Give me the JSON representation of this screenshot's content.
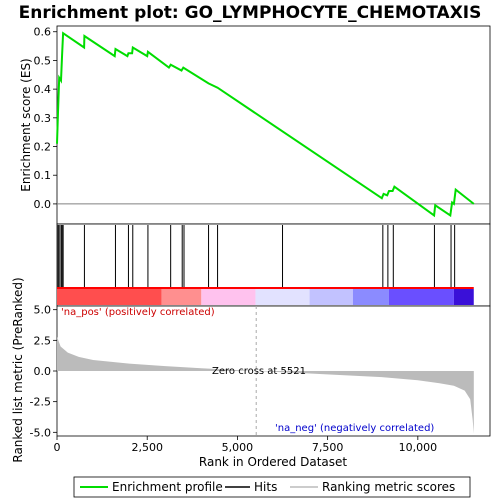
{
  "chart_data": {
    "type": "line",
    "title": "Enrichment plot: GO_LYMPHOCYTE_CHEMOTAXIS",
    "panels": {
      "enrichment": {
        "ylabel": "Enrichment score (ES)",
        "ylim": [
          -0.07,
          0.62
        ],
        "yticks": [
          "0.0",
          "0.1",
          "0.2",
          "0.3",
          "0.4",
          "0.5",
          "0.6"
        ],
        "series": [
          {
            "name": "Enrichment profile",
            "color": "#00dd00",
            "x": [
              0,
              30,
              60,
              110,
              140,
              170,
              750,
              760,
              1600,
              1620,
              1950,
              1980,
              2080,
              2100,
              2500,
              2520,
              3100,
              3150,
              3450,
              3500,
              4200,
              4450,
              9000,
              9050,
              9150,
              9200,
              9300,
              9350,
              10450,
              10480,
              10900,
              10950,
              11000,
              11050,
              11550
            ],
            "y": [
              0.21,
              0.33,
              0.44,
              0.43,
              0.52,
              0.595,
              0.545,
              0.585,
              0.515,
              0.54,
              0.515,
              0.525,
              0.525,
              0.545,
              0.515,
              0.53,
              0.475,
              0.485,
              0.465,
              0.475,
              0.42,
              0.405,
              0.02,
              0.035,
              0.03,
              0.045,
              0.045,
              0.06,
              -0.04,
              -0.005,
              -0.04,
              0.005,
              0.0,
              0.05,
              0.0
            ]
          }
        ]
      },
      "hits": {
        "positions": [
          30,
          60,
          110,
          140,
          170,
          760,
          1620,
          1980,
          2100,
          2520,
          3150,
          3470,
          3520,
          4200,
          4450,
          6250,
          9030,
          9170,
          9320,
          10460,
          10920,
          11020
        ]
      },
      "ranked_metric": {
        "ylabel": "Ranked list metric (PreRanked)",
        "xlabel": "Rank in Ordered Dataset",
        "ylim": [
          -5.3,
          5.3
        ],
        "yticks": [
          "-5.0",
          "-2.5",
          "0.0",
          "2.5",
          "5.0"
        ],
        "xticks": [
          "0",
          "2,500",
          "5,000",
          "7,500",
          "10,000"
        ],
        "xlim": [
          0,
          12000
        ],
        "zero_cross": 5521,
        "profile_x": [
          0,
          100,
          300,
          600,
          1000,
          2000,
          3000,
          4000,
          5521,
          7000,
          9000,
          10000,
          10600,
          11000,
          11300,
          11450,
          11520,
          11550
        ],
        "profile_y": [
          2.8,
          2.0,
          1.5,
          1.15,
          0.9,
          0.6,
          0.4,
          0.22,
          0.0,
          -0.2,
          -0.5,
          -0.75,
          -1.0,
          -1.2,
          -1.6,
          -2.3,
          -4.0,
          -5.1
        ],
        "annotations": {
          "positive": "'na_pos' (positively correlated)",
          "negative": "'na_neg' (negatively correlated)",
          "zero_cross_label": "Zero cross at 5521"
        }
      },
      "colorbar": {
        "segments": [
          {
            "from": 0,
            "to": 2900,
            "color": "#ff4e4e"
          },
          {
            "from": 2900,
            "to": 4000,
            "color": "#ff8f8f"
          },
          {
            "from": 4000,
            "to": 5500,
            "color": "#ffc2ee"
          },
          {
            "from": 5500,
            "to": 7000,
            "color": "#e2e2ff"
          },
          {
            "from": 7000,
            "to": 8200,
            "color": "#c2c2ff"
          },
          {
            "from": 8200,
            "to": 9200,
            "color": "#8b8bff"
          },
          {
            "from": 9200,
            "to": 11000,
            "color": "#6a4fff"
          },
          {
            "from": 11000,
            "to": 11550,
            "color": "#3a10d8"
          }
        ],
        "top_strip_color": "#ff0000"
      }
    },
    "legend": {
      "items": [
        {
          "label": "Enrichment profile",
          "color": "#00dd00"
        },
        {
          "label": "Hits",
          "color": "#000000"
        },
        {
          "label": "Ranking metric scores",
          "color": "#bbbbbb"
        }
      ]
    }
  }
}
